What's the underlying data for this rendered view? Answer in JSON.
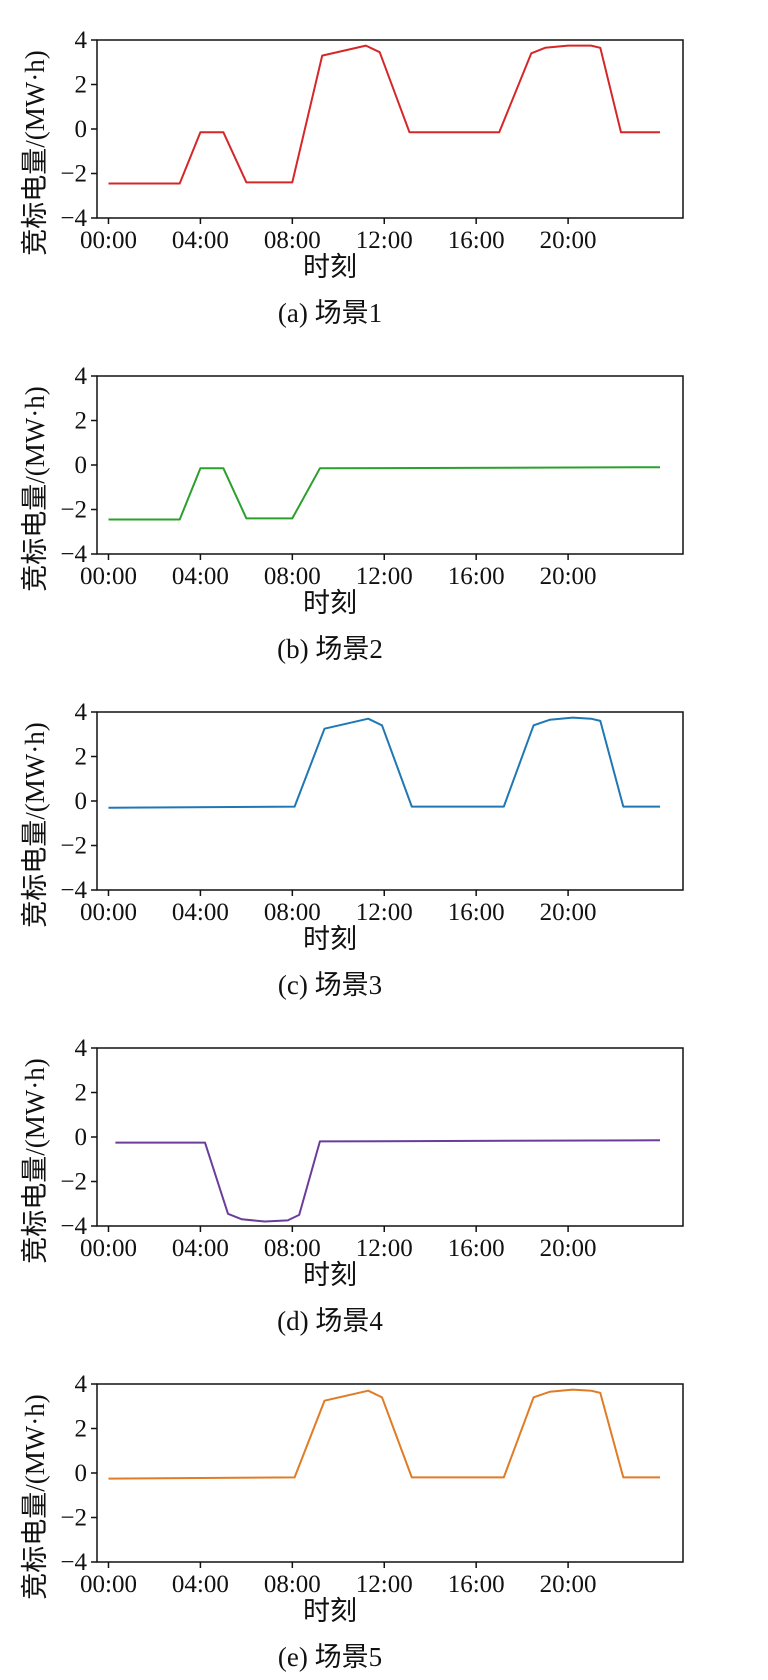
{
  "chart_data": [
    {
      "type": "line",
      "caption": "(a) 场景1",
      "xlabel": "时刻",
      "ylabel": "竞标电量/(MW·h)",
      "x_ticks": [
        "00:00",
        "04:00",
        "08:00",
        "12:00",
        "16:00",
        "20:00"
      ],
      "y_ticks": [
        "−4",
        "−2",
        "0",
        "2",
        "4"
      ],
      "xlim": [
        -0.5,
        25
      ],
      "ylim": [
        -4,
        4
      ],
      "grid": false,
      "color": "#d62728",
      "series": [
        {
          "x": [
            0,
            3.1,
            4,
            5,
            6,
            8,
            9.3,
            11.2,
            11.8,
            13.1,
            17,
            18.4,
            19,
            20,
            21,
            21.4,
            22.3,
            24
          ],
          "y": [
            -2.45,
            -2.45,
            -0.15,
            -0.15,
            -2.4,
            -2.4,
            3.3,
            3.75,
            3.45,
            -0.15,
            -0.15,
            3.4,
            3.65,
            3.75,
            3.75,
            3.65,
            -0.15,
            -0.15
          ]
        }
      ]
    },
    {
      "type": "line",
      "caption": "(b) 场景2",
      "xlabel": "时刻",
      "ylabel": "竞标电量/(MW·h)",
      "x_ticks": [
        "00:00",
        "04:00",
        "08:00",
        "12:00",
        "16:00",
        "20:00"
      ],
      "y_ticks": [
        "−4",
        "−2",
        "0",
        "2",
        "4"
      ],
      "xlim": [
        -0.5,
        25
      ],
      "ylim": [
        -4,
        4
      ],
      "grid": false,
      "color": "#2ca02c",
      "series": [
        {
          "x": [
            0,
            3.1,
            4,
            5,
            6,
            8,
            9.2,
            24
          ],
          "y": [
            -2.45,
            -2.45,
            -0.15,
            -0.15,
            -2.4,
            -2.4,
            -0.15,
            -0.1
          ]
        }
      ]
    },
    {
      "type": "line",
      "caption": "(c) 场景3",
      "xlabel": "时刻",
      "ylabel": "竞标电量/(MW·h)",
      "x_ticks": [
        "00:00",
        "04:00",
        "08:00",
        "12:00",
        "16:00",
        "20:00"
      ],
      "y_ticks": [
        "−4",
        "−2",
        "0",
        "2",
        "4"
      ],
      "xlim": [
        -0.5,
        25
      ],
      "ylim": [
        -4,
        4
      ],
      "grid": false,
      "color": "#1f77b4",
      "series": [
        {
          "x": [
            0,
            8.1,
            9.4,
            11.3,
            11.9,
            13.2,
            17.2,
            18.5,
            19.2,
            20.2,
            21,
            21.4,
            22.4,
            24
          ],
          "y": [
            -0.3,
            -0.25,
            3.25,
            3.7,
            3.4,
            -0.25,
            -0.25,
            3.4,
            3.65,
            3.75,
            3.7,
            3.6,
            -0.25,
            -0.25
          ]
        }
      ]
    },
    {
      "type": "line",
      "caption": "(d) 场景4",
      "xlabel": "时刻",
      "ylabel": "竞标电量/(MW·h)",
      "x_ticks": [
        "00:00",
        "04:00",
        "08:00",
        "12:00",
        "16:00",
        "20:00"
      ],
      "y_ticks": [
        "−4",
        "−2",
        "0",
        "2",
        "4"
      ],
      "xlim": [
        -0.5,
        25
      ],
      "ylim": [
        -4,
        4
      ],
      "grid": false,
      "color": "#6a3d9a",
      "series": [
        {
          "x": [
            0.3,
            4.2,
            5.2,
            5.8,
            6.8,
            7.8,
            8.3,
            9.2,
            24
          ],
          "y": [
            -0.25,
            -0.25,
            -3.45,
            -3.7,
            -3.8,
            -3.75,
            -3.5,
            -0.2,
            -0.15
          ]
        }
      ]
    },
    {
      "type": "line",
      "caption": "(e) 场景5",
      "xlabel": "时刻",
      "ylabel": "竞标电量/(MW·h)",
      "x_ticks": [
        "00:00",
        "04:00",
        "08:00",
        "12:00",
        "16:00",
        "20:00"
      ],
      "y_ticks": [
        "−4",
        "−2",
        "0",
        "2",
        "4"
      ],
      "xlim": [
        -0.5,
        25
      ],
      "ylim": [
        -4,
        4
      ],
      "grid": false,
      "color": "#e07b26",
      "series": [
        {
          "x": [
            0,
            8.1,
            9.4,
            11.3,
            11.9,
            13.2,
            17.2,
            18.5,
            19.2,
            20.2,
            21,
            21.4,
            22.4,
            24
          ],
          "y": [
            -0.25,
            -0.2,
            3.25,
            3.7,
            3.4,
            -0.2,
            -0.2,
            3.4,
            3.65,
            3.75,
            3.7,
            3.6,
            -0.2,
            -0.2
          ]
        }
      ]
    }
  ]
}
